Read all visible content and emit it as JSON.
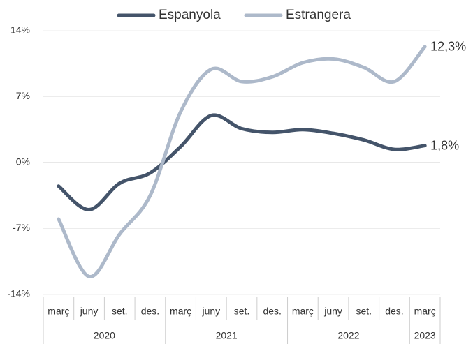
{
  "chart_data": {
    "type": "line",
    "groups": [
      {
        "label": "2020",
        "categories": [
          "març",
          "juny",
          "set.",
          "des."
        ]
      },
      {
        "label": "2021",
        "categories": [
          "març",
          "juny",
          "set.",
          "des."
        ]
      },
      {
        "label": "2022",
        "categories": [
          "març",
          "juny",
          "set.",
          "des."
        ]
      },
      {
        "label": "2023",
        "categories": [
          "març"
        ]
      }
    ],
    "series": [
      {
        "name": "Espanyola",
        "color": "#44546a",
        "values": [
          -2.5,
          -5.0,
          -2.2,
          -1.1,
          1.7,
          5.0,
          3.6,
          3.2,
          3.5,
          3.1,
          2.4,
          1.4,
          1.8
        ],
        "value_labels": [
          null,
          null,
          null,
          null,
          null,
          null,
          null,
          null,
          null,
          null,
          null,
          null,
          "1,8%"
        ]
      },
      {
        "name": "Estrangera",
        "color": "#adb9ca",
        "values": [
          -6.0,
          -12.1,
          -7.6,
          -3.5,
          5.4,
          9.9,
          8.6,
          9.1,
          10.6,
          11.0,
          10.1,
          8.6,
          12.3
        ],
        "value_labels": [
          null,
          null,
          null,
          null,
          null,
          null,
          null,
          null,
          null,
          null,
          null,
          null,
          "12,3%"
        ]
      }
    ],
    "ylim": [
      -14,
      14
    ],
    "yticks": [
      {
        "value": -14,
        "label": "-14%"
      },
      {
        "value": -7,
        "label": "-7%"
      },
      {
        "value": 0,
        "label": "0%"
      },
      {
        "value": 7,
        "label": "7%"
      },
      {
        "value": 14,
        "label": "14%"
      }
    ],
    "grid": true,
    "legend": "top"
  }
}
